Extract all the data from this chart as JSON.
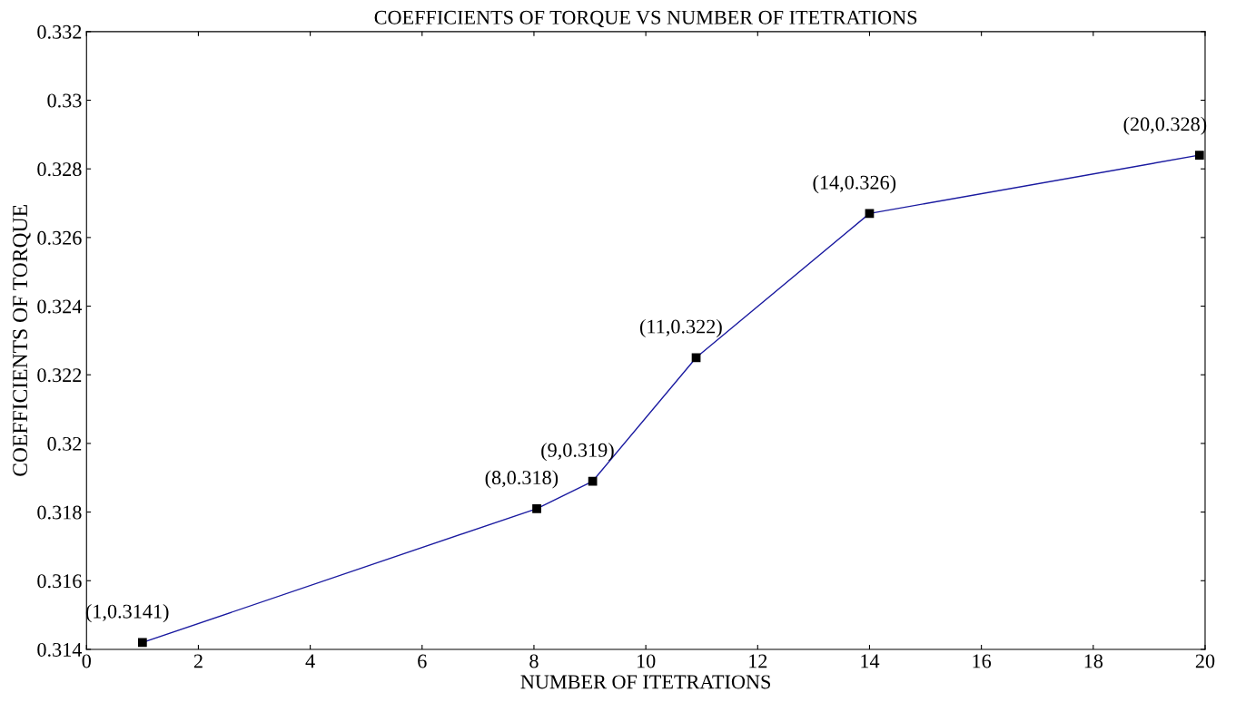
{
  "chart_data": {
    "type": "line",
    "title": "COEFFICIENTS OF TORQUE VS NUMBER OF ITETRATIONS",
    "xlabel": "NUMBER OF ITETRATIONS",
    "ylabel": "COEFFICIENTS OF TORQUE",
    "x": [
      1,
      8.05,
      9.05,
      10.9,
      14,
      19.9
    ],
    "series": [
      {
        "color": "#1a1aa0",
        "values": [
          0.3142,
          0.3181,
          0.3189,
          0.3225,
          0.3267,
          0.3284
        ]
      }
    ],
    "marker": "square",
    "line_style": "solid",
    "grid": false,
    "legend": false,
    "xlim": [
      0,
      20
    ],
    "xticks": [
      0,
      2,
      4,
      6,
      8,
      10,
      12,
      14,
      16,
      18,
      20
    ],
    "ylim": [
      0.314,
      0.332
    ],
    "yticks": [
      0.314,
      0.316,
      0.318,
      0.32,
      0.322,
      0.324,
      0.326,
      0.328,
      0.33,
      0.332
    ],
    "annotations": [
      {
        "text": "(1,0.3141)",
        "x": 1,
        "y": 0.3142
      },
      {
        "text": "(8,0.318)",
        "x": 8.05,
        "y": 0.3181
      },
      {
        "text": "(9,0.319)",
        "x": 9.05,
        "y": 0.3189
      },
      {
        "text": "(11,0.322)",
        "x": 10.9,
        "y": 0.3225
      },
      {
        "text": "(14,0.326)",
        "x": 14,
        "y": 0.3267
      },
      {
        "text": "(20,0.328)",
        "x": 19.9,
        "y": 0.3284
      }
    ]
  }
}
